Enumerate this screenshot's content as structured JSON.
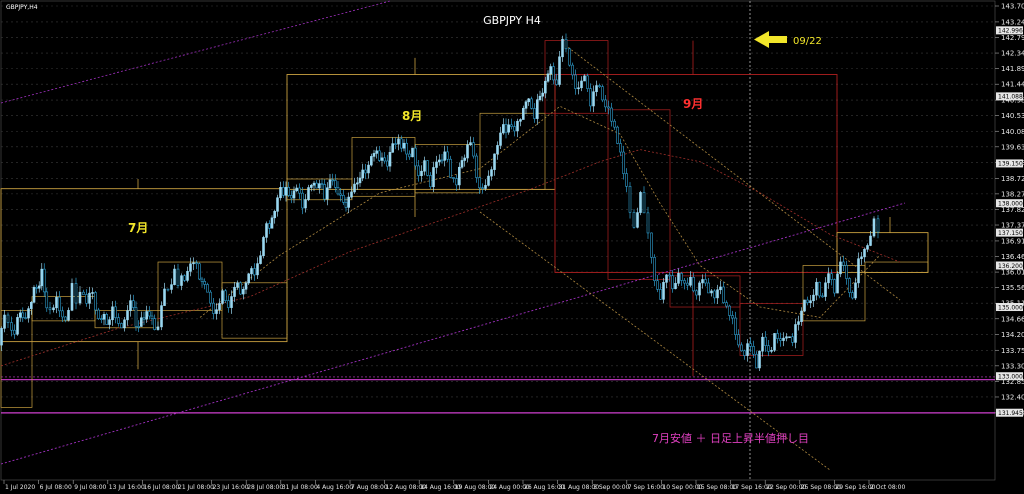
{
  "window": {
    "symbol_tab": "GBPJPY,H4",
    "title": "GBPJPY H4"
  },
  "colors": {
    "background": "#000000",
    "candle_up": "#9ad7f0",
    "candle_down": "#2f9fd0",
    "box": "#c8a040",
    "red_box": "#b02020",
    "purple_line": "#a030c0",
    "magenta_level": "#d040d0",
    "annotation_yellow": "#f2e62a",
    "annotation_red": "#ff3030",
    "annotation_pink": "#e040c0"
  },
  "annotations": {
    "july": "7月",
    "august": "8月",
    "september": "9月",
    "arrow_date": "09/22",
    "bottom_note": "7月安値 ＋ 日足上昇半値押し目"
  },
  "price_axis": {
    "labels": [
      "143.700",
      "143.240",
      "142.790",
      "142.340",
      "141.890",
      "141.440",
      "140.980",
      "140.530",
      "140.080",
      "139.630",
      "139.180",
      "138.720",
      "138.270",
      "137.820",
      "137.370",
      "136.910",
      "136.460",
      "136.010",
      "135.560",
      "135.110",
      "134.660",
      "134.200",
      "133.750",
      "133.300",
      "132.850",
      "132.400",
      "131.940"
    ],
    "highlight_labels": [
      "142.996",
      "141.088",
      "139.150",
      "138.000",
      "137.150",
      "136.200",
      "135.000",
      "133.000",
      "131.945"
    ]
  },
  "time_axis": {
    "labels": [
      "1 Jul 2020",
      "6 Jul 08:00",
      "9 Jul 08:00",
      "13 Jul 16:00",
      "16 Jul 08:00",
      "21 Jul 08:00",
      "23 Jul 16:00",
      "28 Jul 08:00",
      "31 Jul 08:00",
      "4 Aug 16:00",
      "7 Aug 08:00",
      "12 Aug 08:00",
      "14 Aug 16:00",
      "19 Aug 08:00",
      "24 Aug 00:00",
      "26 Aug 16:00",
      "31 Aug 08:00",
      "3 Sep 00:00",
      "7 Sep 16:00",
      "10 Sep 00:00",
      "15 Sep 08:00",
      "17 Sep 16:00",
      "22 Sep 00:00",
      "25 Sep 08:00",
      "29 Sep 16:00",
      "2 Oct 08:00"
    ]
  },
  "chart_data": {
    "type": "candlestick",
    "symbol": "GBPJPY",
    "timeframe": "H4",
    "period": [
      "1 Jul 2020",
      "2 Oct 08:00"
    ],
    "ylim": [
      131.8,
      143.9
    ],
    "price_path": [
      [
        0,
        133.9
      ],
      [
        6,
        134.7
      ],
      [
        10,
        134.4
      ],
      [
        16,
        134.2
      ],
      [
        19,
        134.9
      ],
      [
        24,
        134.6
      ],
      [
        30,
        135.0
      ],
      [
        38,
        135.6
      ],
      [
        43,
        135.9
      ],
      [
        48,
        135.1
      ],
      [
        52,
        134.9
      ],
      [
        58,
        135.1
      ],
      [
        64,
        134.7
      ],
      [
        70,
        134.9
      ],
      [
        74,
        135.7
      ],
      [
        78,
        135.1
      ],
      [
        82,
        135.6
      ],
      [
        88,
        135.1
      ],
      [
        94,
        135.4
      ],
      [
        100,
        134.7
      ],
      [
        108,
        134.6
      ],
      [
        114,
        134.9
      ],
      [
        120,
        134.4
      ],
      [
        126,
        134.7
      ],
      [
        132,
        135.1
      ],
      [
        140,
        134.4
      ],
      [
        148,
        134.9
      ],
      [
        156,
        134.4
      ],
      [
        160,
        134.6
      ],
      [
        166,
        135.6
      ],
      [
        170,
        135.4
      ],
      [
        176,
        135.9
      ],
      [
        180,
        135.6
      ],
      [
        186,
        135.9
      ],
      [
        192,
        136.3
      ],
      [
        198,
        136.1
      ],
      [
        206,
        135.6
      ],
      [
        212,
        135.1
      ],
      [
        218,
        134.9
      ],
      [
        224,
        135.3
      ],
      [
        230,
        135.1
      ],
      [
        236,
        135.6
      ],
      [
        242,
        135.4
      ],
      [
        250,
        135.9
      ],
      [
        256,
        136.1
      ],
      [
        262,
        136.5
      ],
      [
        268,
        137.3
      ],
      [
        276,
        137.7
      ],
      [
        282,
        138.5
      ],
      [
        290,
        138.2
      ],
      [
        298,
        138.4
      ],
      [
        304,
        138.0
      ],
      [
        310,
        138.4
      ],
      [
        318,
        138.6
      ],
      [
        326,
        138.3
      ],
      [
        334,
        138.7
      ],
      [
        342,
        138.1
      ],
      [
        350,
        138.0
      ],
      [
        356,
        138.6
      ],
      [
        364,
        138.8
      ],
      [
        370,
        139.2
      ],
      [
        378,
        139.5
      ],
      [
        386,
        139.1
      ],
      [
        394,
        139.6
      ],
      [
        400,
        139.9
      ],
      [
        408,
        139.4
      ],
      [
        414,
        139.6
      ],
      [
        420,
        138.6
      ],
      [
        426,
        139.3
      ],
      [
        432,
        138.5
      ],
      [
        438,
        139.2
      ],
      [
        446,
        139.4
      ],
      [
        452,
        138.9
      ],
      [
        458,
        138.6
      ],
      [
        466,
        139.5
      ],
      [
        472,
        139.7
      ],
      [
        478,
        138.8
      ],
      [
        484,
        138.4
      ],
      [
        490,
        138.6
      ],
      [
        496,
        139.5
      ],
      [
        502,
        140.0
      ],
      [
        510,
        140.3
      ],
      [
        516,
        140.0
      ],
      [
        522,
        140.6
      ],
      [
        530,
        141.0
      ],
      [
        536,
        140.6
      ],
      [
        544,
        141.3
      ],
      [
        552,
        141.9
      ],
      [
        558,
        141.5
      ],
      [
        564,
        142.7
      ],
      [
        568,
        142.3
      ],
      [
        574,
        141.7
      ],
      [
        580,
        141.3
      ],
      [
        586,
        141.6
      ],
      [
        592,
        141.0
      ],
      [
        598,
        141.4
      ],
      [
        604,
        141.0
      ],
      [
        610,
        140.8
      ],
      [
        616,
        140.0
      ],
      [
        622,
        139.5
      ],
      [
        628,
        138.5
      ],
      [
        632,
        137.7
      ],
      [
        636,
        137.3
      ],
      [
        642,
        138.2
      ],
      [
        646,
        137.6
      ],
      [
        650,
        137.0
      ],
      [
        656,
        135.7
      ],
      [
        662,
        135.4
      ],
      [
        668,
        135.9
      ],
      [
        674,
        135.6
      ],
      [
        680,
        136.0
      ],
      [
        686,
        135.5
      ],
      [
        692,
        135.9
      ],
      [
        698,
        135.3
      ],
      [
        704,
        135.8
      ],
      [
        710,
        135.6
      ],
      [
        716,
        135.2
      ],
      [
        722,
        135.6
      ],
      [
        728,
        135.0
      ],
      [
        734,
        134.5
      ],
      [
        740,
        134.0
      ],
      [
        746,
        133.6
      ],
      [
        752,
        133.9
      ],
      [
        758,
        133.4
      ],
      [
        764,
        134.0
      ],
      [
        770,
        133.7
      ],
      [
        776,
        134.2
      ],
      [
        782,
        133.9
      ],
      [
        788,
        134.3
      ],
      [
        794,
        134.0
      ],
      [
        800,
        134.6
      ],
      [
        806,
        135.3
      ],
      [
        812,
        135.0
      ],
      [
        818,
        135.7
      ],
      [
        824,
        135.3
      ],
      [
        830,
        135.9
      ],
      [
        836,
        135.6
      ],
      [
        842,
        136.3
      ],
      [
        848,
        135.8
      ],
      [
        854,
        135.3
      ],
      [
        860,
        136.2
      ],
      [
        866,
        136.7
      ],
      [
        872,
        137.1
      ],
      [
        876,
        137.5
      ],
      [
        880,
        137.2
      ]
    ]
  }
}
